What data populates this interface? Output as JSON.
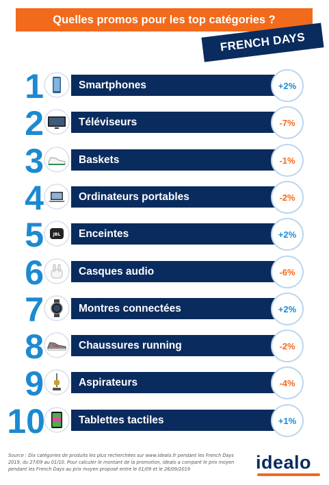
{
  "header": {
    "title": "Quelles promos pour les top catégories ?",
    "banner": "FRENCH DAYS"
  },
  "chart_data": {
    "type": "table",
    "title": "Quelles promos pour les top catégories ?",
    "rows": [
      {
        "rank": "1",
        "category": "Smartphones",
        "promo": "+2%",
        "value": 2,
        "icon": "smartphone-icon"
      },
      {
        "rank": "2",
        "category": "Téléviseurs",
        "promo": "-7%",
        "value": -7,
        "icon": "tv-icon"
      },
      {
        "rank": "3",
        "category": "Baskets",
        "promo": "-1%",
        "value": -1,
        "icon": "sneaker-icon"
      },
      {
        "rank": "4",
        "category": "Ordinateurs portables",
        "promo": "-2%",
        "value": -2,
        "icon": "laptop-icon"
      },
      {
        "rank": "5",
        "category": "Enceintes",
        "promo": "+2%",
        "value": 2,
        "icon": "speaker-icon"
      },
      {
        "rank": "6",
        "category": "Casques audio",
        "promo": "-6%",
        "value": -6,
        "icon": "earbuds-icon"
      },
      {
        "rank": "7",
        "category": "Montres connectées",
        "promo": "+2%",
        "value": 2,
        "icon": "smartwatch-icon"
      },
      {
        "rank": "8",
        "category": "Chaussures running",
        "promo": "-2%",
        "value": -2,
        "icon": "running-shoe-icon"
      },
      {
        "rank": "9",
        "category": "Aspirateurs",
        "promo": "-4%",
        "value": -4,
        "icon": "vacuum-icon"
      },
      {
        "rank": "10",
        "category": "Tablettes tactiles",
        "promo": "+1%",
        "value": 1,
        "icon": "tablet-icon"
      }
    ]
  },
  "colors": {
    "brand_orange": "#f26a1b",
    "brand_navy": "#0a2b5e",
    "rank_blue": "#1c8ad1"
  },
  "footer": {
    "source": "Source : Dix catégories de produits les plus recherchées sur www.idealo.fr pendant les French Days 2019, du 27/09 au 01/10. Pour calculer le montant de la promotion, idealo a comparé le prix moyen pendant les French Days au prix moyen proposé entre le 01/09 et le 26/09/2019",
    "logo": "idealo"
  }
}
